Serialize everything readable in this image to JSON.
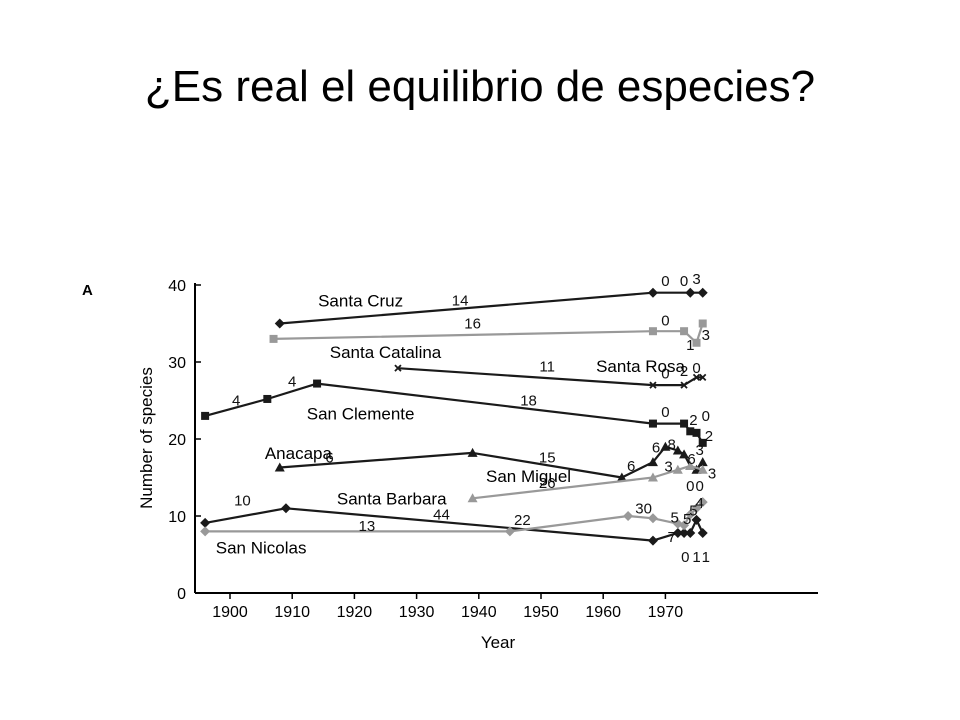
{
  "slide": {
    "title": "¿Es real el equilibrio de especies?"
  },
  "chart_data": {
    "type": "line",
    "panel_label": "A",
    "xlabel": "Year",
    "ylabel": "Number of species",
    "xlim": [
      1895,
      1977
    ],
    "ylim": [
      0,
      40
    ],
    "x_ticks": [
      1900,
      1910,
      1920,
      1930,
      1940,
      1950,
      1960,
      1970
    ],
    "y_ticks": [
      0,
      10,
      20,
      30,
      40
    ],
    "grid": false,
    "colors": {
      "black": "#1a1a1a",
      "gray": "#999999"
    },
    "series": [
      {
        "name": "Santa Cruz",
        "color": "black",
        "marker": "diamond",
        "x": [
          1908,
          1968,
          1974,
          1976
        ],
        "y": [
          35,
          39,
          39,
          39
        ]
      },
      {
        "name": "Santa Catalina",
        "color": "gray",
        "marker": "square",
        "x": [
          1907,
          1968,
          1973,
          1975,
          1976
        ],
        "y": [
          33,
          34,
          34,
          32.5,
          35
        ]
      },
      {
        "name": "Santa Rosa",
        "color": "black",
        "marker": "x",
        "x": [
          1927,
          1968,
          1973,
          1975,
          1976
        ],
        "y": [
          29.2,
          27,
          27,
          28,
          28
        ]
      },
      {
        "name": "San Clemente",
        "color": "black",
        "marker": "square",
        "x": [
          1896,
          1906,
          1914,
          1968,
          1973,
          1974,
          1975,
          1976
        ],
        "y": [
          23,
          25.2,
          27.2,
          22,
          22,
          21,
          20.8,
          19.5
        ]
      },
      {
        "name": "Anacapa",
        "color": "black",
        "marker": "triangle",
        "x": [
          1908,
          1939,
          1963,
          1968,
          1970,
          1972,
          1973,
          1974,
          1975,
          1976
        ],
        "y": [
          16.3,
          18.2,
          15,
          17,
          19,
          18.5,
          18,
          16.5,
          16,
          17
        ]
      },
      {
        "name": "San Miguel",
        "color": "gray",
        "marker": "triangle",
        "x": [
          1939,
          1968,
          1972,
          1974,
          1976
        ],
        "y": [
          12.3,
          15,
          16,
          16.5,
          16
        ]
      },
      {
        "name": "Santa Barbara",
        "color": "black",
        "marker": "diamond",
        "x": [
          1896,
          1909,
          1968,
          1972,
          1973,
          1974,
          1975,
          1976
        ],
        "y": [
          9.1,
          11,
          6.8,
          7.8,
          7.8,
          7.8,
          9.5,
          7.8
        ]
      },
      {
        "name": "San Nicolas",
        "color": "gray",
        "marker": "diamond",
        "x": [
          1896,
          1945,
          1964,
          1968,
          1972,
          1973,
          1974,
          1975,
          1976
        ],
        "y": [
          8,
          8,
          10,
          9.7,
          9,
          8.8,
          10.2,
          11,
          11.8
        ]
      }
    ],
    "annotations": [
      {
        "text": "14",
        "x": 1937,
        "y": 38
      },
      {
        "text": "0",
        "x": 1970,
        "y": 40.5
      },
      {
        "text": "0",
        "x": 1973,
        "y": 40.5
      },
      {
        "text": "3",
        "x": 1975,
        "y": 40.8
      },
      {
        "text": "16",
        "x": 1939,
        "y": 35
      },
      {
        "text": "0",
        "x": 1970,
        "y": 35.4
      },
      {
        "text": "1",
        "x": 1974,
        "y": 32.2
      },
      {
        "text": "3",
        "x": 1976.5,
        "y": 33.5
      },
      {
        "text": "11",
        "x": 1951,
        "y": 29.4
      },
      {
        "text": "0",
        "x": 1970,
        "y": 28.5
      },
      {
        "text": "2",
        "x": 1973,
        "y": 28.8
      },
      {
        "text": "0",
        "x": 1975,
        "y": 29.2
      },
      {
        "text": "4",
        "x": 1901,
        "y": 25
      },
      {
        "text": "4",
        "x": 1910,
        "y": 27.5
      },
      {
        "text": "18",
        "x": 1948,
        "y": 25
      },
      {
        "text": "0",
        "x": 1970,
        "y": 23.5
      },
      {
        "text": "2",
        "x": 1974.5,
        "y": 22.5
      },
      {
        "text": "0",
        "x": 1976.5,
        "y": 23
      },
      {
        "text": "2",
        "x": 1977,
        "y": 20.4
      },
      {
        "text": "6",
        "x": 1916,
        "y": 17.6
      },
      {
        "text": "15",
        "x": 1951,
        "y": 17.6
      },
      {
        "text": "6",
        "x": 1964.5,
        "y": 16.5
      },
      {
        "text": "6",
        "x": 1968.5,
        "y": 18.9
      },
      {
        "text": "8",
        "x": 1971,
        "y": 19.3
      },
      {
        "text": "3",
        "x": 1970.5,
        "y": 16.4
      },
      {
        "text": "6",
        "x": 1974.2,
        "y": 17.4
      },
      {
        "text": "3",
        "x": 1975.5,
        "y": 18.6
      },
      {
        "text": "3",
        "x": 1977.5,
        "y": 15.5
      },
      {
        "text": "26",
        "x": 1951,
        "y": 14.3
      },
      {
        "text": "0",
        "x": 1974,
        "y": 13.9
      },
      {
        "text": "0",
        "x": 1975.5,
        "y": 13.9
      },
      {
        "text": "10",
        "x": 1902,
        "y": 12
      },
      {
        "text": "44",
        "x": 1934,
        "y": 10.2
      },
      {
        "text": "13",
        "x": 1922,
        "y": 8.7
      },
      {
        "text": "22",
        "x": 1947,
        "y": 9.5
      },
      {
        "text": "30",
        "x": 1966.5,
        "y": 11
      },
      {
        "text": "5",
        "x": 1971.5,
        "y": 9.8
      },
      {
        "text": "5",
        "x": 1973.5,
        "y": 9.6
      },
      {
        "text": "5",
        "x": 1974.5,
        "y": 10.7
      },
      {
        "text": "4",
        "x": 1975.5,
        "y": 11.7
      },
      {
        "text": "7",
        "x": 1971,
        "y": 7.3
      },
      {
        "text": "0",
        "x": 1973.2,
        "y": 4.7
      },
      {
        "text": "1",
        "x": 1975,
        "y": 4.7
      },
      {
        "text": "1",
        "x": 1976.5,
        "y": 4.7
      }
    ],
    "series_labels": [
      {
        "text": "Santa Cruz",
        "x": 1921,
        "y": 38
      },
      {
        "text": "Santa Catalina",
        "x": 1925,
        "y": 31.3
      },
      {
        "text": "Santa Rosa",
        "x": 1966,
        "y": 29.5
      },
      {
        "text": "San Clemente",
        "x": 1921,
        "y": 23.3
      },
      {
        "text": "Anacapa",
        "x": 1911,
        "y": 18.2
      },
      {
        "text": "San Miguel",
        "x": 1948,
        "y": 15.2
      },
      {
        "text": "Santa Barbara",
        "x": 1926,
        "y": 12.3
      },
      {
        "text": "San Nicolas",
        "x": 1905,
        "y": 5.9
      }
    ]
  }
}
